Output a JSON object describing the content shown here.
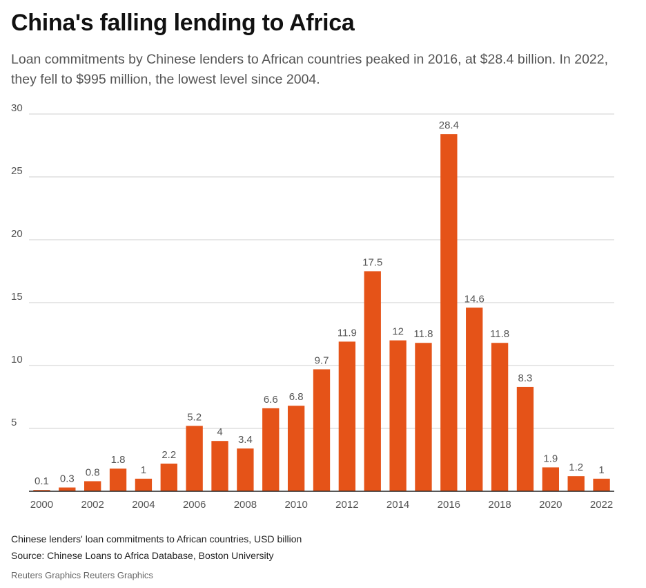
{
  "header": {
    "title": "China's falling lending to Africa",
    "subtitle": "Loan commitments by Chinese lenders to African countries peaked in 2016, at $28.4 billion. In 2022, they fell to $995 million, the lowest level since 2004."
  },
  "chart_data": {
    "type": "bar",
    "title": "China's falling lending to Africa",
    "xlabel": "",
    "ylabel": "Chinese lenders' loan commitments to African countries, USD billion",
    "ylim": [
      0,
      30
    ],
    "yticks": [
      5,
      10,
      15,
      20,
      25,
      30
    ],
    "xtick_labels": [
      "2000",
      "2002",
      "2004",
      "2006",
      "2008",
      "2010",
      "2012",
      "2014",
      "2016",
      "2018",
      "2020",
      "2022"
    ],
    "categories": [
      "2000",
      "2001",
      "2002",
      "2003",
      "2004",
      "2005",
      "2006",
      "2007",
      "2008",
      "2009",
      "2010",
      "2011",
      "2012",
      "2013",
      "2014",
      "2015",
      "2016",
      "2017",
      "2018",
      "2019",
      "2020",
      "2021",
      "2022"
    ],
    "values": [
      0.1,
      0.3,
      0.8,
      1.8,
      1,
      2.2,
      5.2,
      4,
      3.4,
      6.6,
      6.8,
      9.7,
      11.9,
      17.5,
      12,
      11.8,
      28.4,
      14.6,
      11.8,
      8.3,
      1.9,
      1.2,
      1
    ],
    "labels": [
      "0.1",
      "0.3",
      "0.8",
      "1.8",
      "1",
      "2.2",
      "5.2",
      "4",
      "3.4",
      "6.6",
      "6.8",
      "9.7",
      "11.9",
      "17.5",
      "12",
      "11.8",
      "28.4",
      "14.6",
      "11.8",
      "8.3",
      "1.9",
      "1.2",
      "1"
    ],
    "grid": true,
    "legend": "none",
    "bar_color": "#e55318"
  },
  "footer": {
    "note": "Chinese lenders' loan commitments to African countries, USD billion",
    "source": "Source: Chinese Loans to Africa Database, Boston University",
    "credit": "Reuters Graphics Reuters Graphics"
  }
}
